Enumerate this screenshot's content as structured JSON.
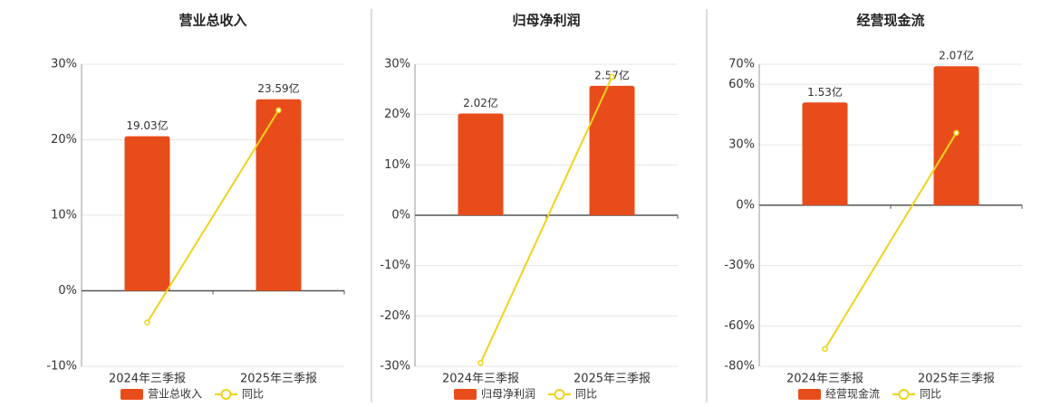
{
  "chart_data": [
    {
      "type": "combo",
      "title": "营业总收入",
      "categories": [
        "2024年三季报",
        "2025年三季报"
      ],
      "series": [
        {
          "name": "营业总收入",
          "kind": "bar",
          "color": "#e84c1b",
          "axis": "y2",
          "values": [
            19.03,
            23.59
          ],
          "value_labels": [
            "19.03亿",
            "23.59亿"
          ]
        },
        {
          "name": "同比",
          "kind": "line",
          "color": "#f0d21a",
          "values": [
            -4.2,
            23.9
          ]
        }
      ],
      "ylim": [
        -10,
        30
      ],
      "yticks": [
        {
          "value": -10,
          "label": "-10%"
        },
        {
          "value": 0,
          "label": "0%"
        },
        {
          "value": 10,
          "label": "10%"
        },
        {
          "value": 20,
          "label": "20%"
        },
        {
          "value": 30,
          "label": "30%"
        }
      ],
      "y2lim": [
        -9.3,
        27.9
      ],
      "grid": true
    },
    {
      "type": "combo",
      "title": "归母净利润",
      "categories": [
        "2024年三季报",
        "2025年三季报"
      ],
      "series": [
        {
          "name": "归母净利润",
          "kind": "bar",
          "color": "#e84c1b",
          "axis": "y2",
          "values": [
            2.02,
            2.57
          ],
          "value_labels": [
            "2.02亿",
            "2.57亿"
          ]
        },
        {
          "name": "同比",
          "kind": "line",
          "color": "#f0d21a",
          "values": [
            -29.3,
            27.5
          ]
        }
      ],
      "ylim": [
        -30,
        30
      ],
      "yticks": [
        {
          "value": -30,
          "label": "-30%"
        },
        {
          "value": -20,
          "label": "-20%"
        },
        {
          "value": -10,
          "label": "-10%"
        },
        {
          "value": 0,
          "label": "0%"
        },
        {
          "value": 10,
          "label": "10%"
        },
        {
          "value": 20,
          "label": "20%"
        },
        {
          "value": 30,
          "label": "30%"
        }
      ],
      "y2lim": [
        -3.0,
        3.0
      ],
      "grid": true
    },
    {
      "type": "combo",
      "title": "经营现金流",
      "categories": [
        "2024年三季报",
        "2025年三季报"
      ],
      "series": [
        {
          "name": "经营现金流",
          "kind": "bar",
          "color": "#e84c1b",
          "axis": "y2",
          "values": [
            1.53,
            2.07
          ],
          "value_labels": [
            "1.53亿",
            "2.07亿"
          ]
        },
        {
          "name": "同比",
          "kind": "line",
          "color": "#f0d21a",
          "values": [
            -71.4,
            35.9
          ]
        }
      ],
      "ylim": [
        -80,
        70
      ],
      "yticks": [
        {
          "value": -80,
          "label": "-80%"
        },
        {
          "value": -60,
          "label": "-60%"
        },
        {
          "value": -30,
          "label": "-30%"
        },
        {
          "value": 0,
          "label": "0%"
        },
        {
          "value": 30,
          "label": "30%"
        },
        {
          "value": 60,
          "label": "60%"
        },
        {
          "value": 70,
          "label": "70%"
        }
      ],
      "y2lim": [
        -2.4,
        2.1
      ],
      "grid": true
    }
  ]
}
